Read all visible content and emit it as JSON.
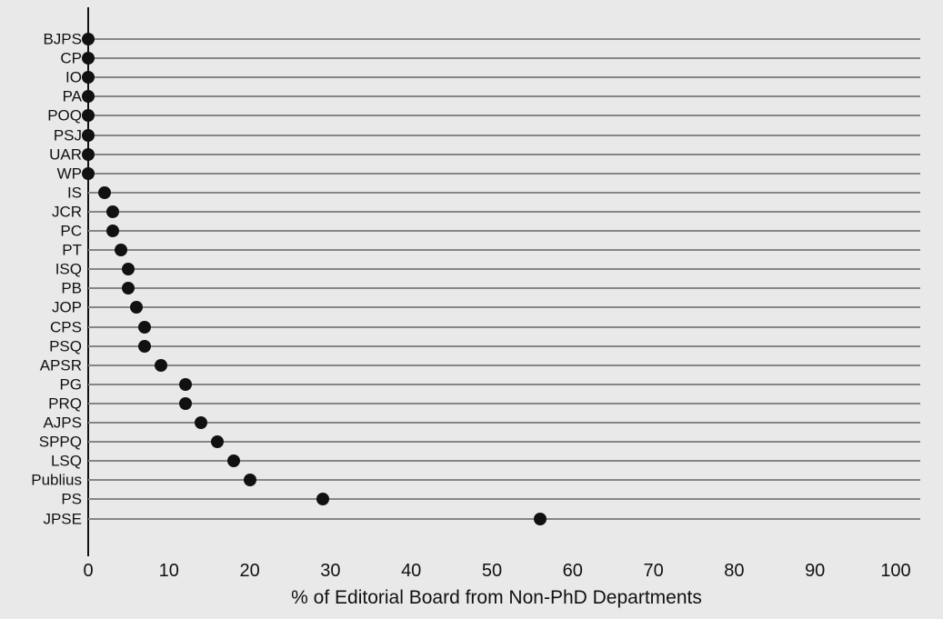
{
  "chart_data": {
    "type": "scatter",
    "variant": "horizontal-dot-plot",
    "title": "",
    "xlabel": "% of Editorial Board from Non-PhD Departments",
    "ylabel": "",
    "categories": [
      "BJPS",
      "CP",
      "IO",
      "PA",
      "POQ",
      "PSJ",
      "UAR",
      "WP",
      "IS",
      "JCR",
      "PC",
      "PT",
      "ISQ",
      "PB",
      "JOP",
      "CPS",
      "PSQ",
      "APSR",
      "PG",
      "PRQ",
      "AJPS",
      "SPPQ",
      "LSQ",
      "Publius",
      "PS",
      "JPSE"
    ],
    "values": [
      0,
      0,
      0,
      0,
      0,
      0,
      0,
      0,
      2,
      3,
      3,
      4,
      5,
      5,
      6,
      7,
      7,
      9,
      12,
      12,
      14,
      16,
      18,
      20,
      29,
      56
    ],
    "xlim": [
      0,
      100
    ],
    "xticks": [
      0,
      10,
      20,
      30,
      40,
      50,
      60,
      70,
      80,
      90,
      100
    ],
    "grid": "horizontal line per category, full plot width",
    "legend": "none",
    "colors": {
      "dot": "#111111",
      "gridline": "#868686",
      "axis": "#111111",
      "text": "#111111",
      "background": "#e9e9e9"
    }
  }
}
